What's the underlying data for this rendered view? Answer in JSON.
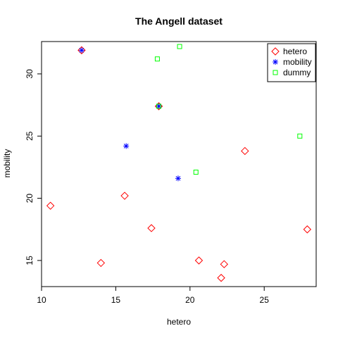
{
  "chart_data": {
    "type": "scatter",
    "title": "The Angell dataset",
    "xlabel": "hetero",
    "ylabel": "mobility",
    "xlim": [
      10,
      28.5
    ],
    "ylim": [
      12.9,
      32.6
    ],
    "xticks": [
      10,
      15,
      20,
      25
    ],
    "yticks": [
      15,
      20,
      25,
      30
    ],
    "grid": false,
    "legend_position": "top-right",
    "series": [
      {
        "name": "hetero",
        "marker": "diamond",
        "color": "#ff0000",
        "points": [
          {
            "x": 10.6,
            "y": 19.4
          },
          {
            "x": 12.7,
            "y": 31.9
          },
          {
            "x": 14.0,
            "y": 14.8
          },
          {
            "x": 15.6,
            "y": 20.2
          },
          {
            "x": 17.4,
            "y": 17.6
          },
          {
            "x": 17.9,
            "y": 27.4
          },
          {
            "x": 20.6,
            "y": 15.0
          },
          {
            "x": 22.1,
            "y": 13.6
          },
          {
            "x": 22.3,
            "y": 14.7
          },
          {
            "x": 23.7,
            "y": 23.8
          },
          {
            "x": 27.9,
            "y": 17.5
          }
        ]
      },
      {
        "name": "mobility",
        "marker": "asterisk",
        "color": "#0000ff",
        "points": [
          {
            "x": 12.7,
            "y": 31.9
          },
          {
            "x": 15.7,
            "y": 24.2
          },
          {
            "x": 17.9,
            "y": 27.4
          },
          {
            "x": 19.2,
            "y": 21.6
          }
        ]
      },
      {
        "name": "dummy",
        "marker": "square",
        "color": "#00ff00",
        "points": [
          {
            "x": 17.8,
            "y": 31.2
          },
          {
            "x": 17.9,
            "y": 27.4
          },
          {
            "x": 19.3,
            "y": 32.2
          },
          {
            "x": 20.4,
            "y": 22.1
          },
          {
            "x": 27.4,
            "y": 25.0
          }
        ]
      }
    ]
  }
}
